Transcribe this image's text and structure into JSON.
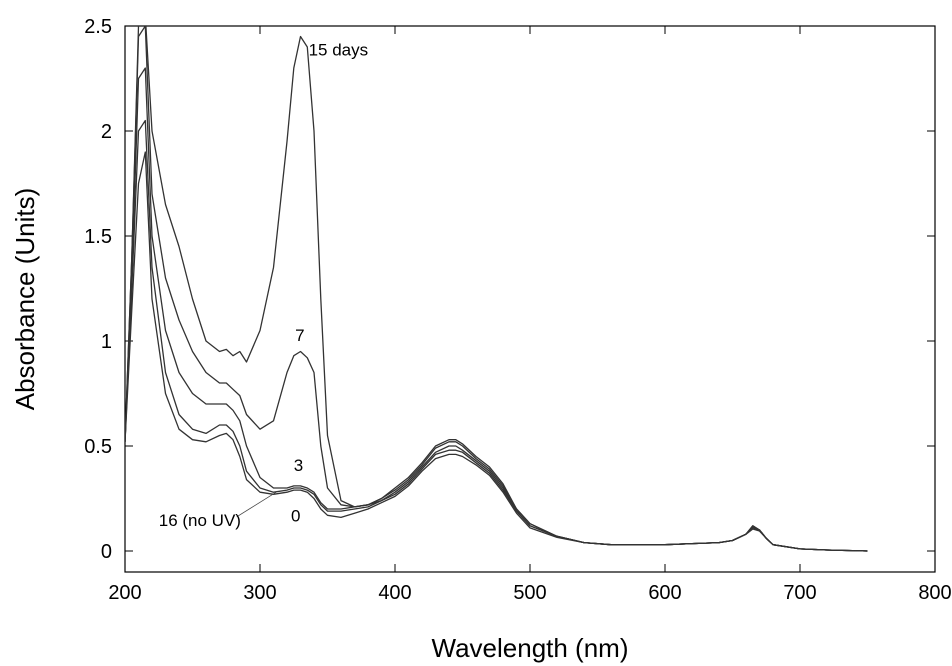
{
  "chart_data": {
    "type": "line",
    "title": "",
    "xlabel": "Wavelength (nm)",
    "ylabel": "Absorbance (Units)",
    "xlim": [
      200,
      800
    ],
    "ylim": [
      -0.1,
      2.5
    ],
    "x_ticks": [
      200,
      300,
      400,
      500,
      600,
      700,
      800
    ],
    "y_ticks": [
      0,
      0.5,
      1,
      1.5,
      2,
      2.5
    ],
    "x_tick_labels": [
      "200",
      "300",
      "400",
      "500",
      "600",
      "700",
      "800"
    ],
    "y_tick_labels": [
      "0",
      "0.5",
      "1",
      "1.5",
      "2",
      "2.5"
    ],
    "grid": false,
    "series": [
      {
        "name": "15 days",
        "x": [
          200,
          205,
          210,
          215,
          220,
          230,
          240,
          250,
          260,
          270,
          275,
          280,
          285,
          290,
          300,
          310,
          320,
          325,
          330,
          335,
          340,
          345,
          350,
          360,
          370,
          380,
          390,
          400,
          410,
          420,
          430,
          440,
          445,
          450,
          460,
          470,
          480,
          490,
          500,
          520,
          540,
          560,
          580,
          600,
          620,
          640,
          650,
          660,
          665,
          670,
          675,
          680,
          700,
          720,
          750
        ],
        "y": [
          0.52,
          1.4,
          2.5,
          2.55,
          2.0,
          1.65,
          1.45,
          1.2,
          1.0,
          0.95,
          0.96,
          0.93,
          0.95,
          0.9,
          1.05,
          1.35,
          1.95,
          2.3,
          2.45,
          2.4,
          2.0,
          1.2,
          0.55,
          0.24,
          0.21,
          0.22,
          0.25,
          0.3,
          0.35,
          0.42,
          0.5,
          0.53,
          0.53,
          0.51,
          0.45,
          0.4,
          0.32,
          0.2,
          0.13,
          0.07,
          0.04,
          0.03,
          0.03,
          0.03,
          0.035,
          0.04,
          0.05,
          0.08,
          0.12,
          0.1,
          0.06,
          0.03,
          0.01,
          0.005,
          0.0
        ]
      },
      {
        "name": "7",
        "x": [
          200,
          205,
          210,
          215,
          220,
          230,
          240,
          250,
          260,
          270,
          275,
          280,
          285,
          290,
          300,
          310,
          320,
          325,
          330,
          335,
          340,
          345,
          350,
          360,
          370,
          380,
          390,
          400,
          410,
          420,
          430,
          440,
          445,
          450,
          460,
          470,
          480,
          490,
          500,
          520,
          540,
          560,
          580,
          600,
          620,
          640,
          650,
          660,
          665,
          670,
          675,
          680,
          700,
          720,
          750
        ],
        "y": [
          0.52,
          1.4,
          2.45,
          2.5,
          1.7,
          1.3,
          1.1,
          0.95,
          0.85,
          0.8,
          0.8,
          0.77,
          0.74,
          0.65,
          0.58,
          0.62,
          0.85,
          0.93,
          0.95,
          0.92,
          0.85,
          0.5,
          0.3,
          0.22,
          0.21,
          0.22,
          0.25,
          0.29,
          0.34,
          0.41,
          0.49,
          0.52,
          0.52,
          0.5,
          0.44,
          0.39,
          0.31,
          0.2,
          0.13,
          0.07,
          0.04,
          0.03,
          0.03,
          0.03,
          0.035,
          0.04,
          0.05,
          0.08,
          0.12,
          0.1,
          0.06,
          0.03,
          0.01,
          0.005,
          0.0
        ]
      },
      {
        "name": "3",
        "x": [
          200,
          205,
          210,
          215,
          220,
          230,
          240,
          250,
          260,
          270,
          275,
          280,
          285,
          290,
          300,
          310,
          320,
          325,
          330,
          335,
          340,
          345,
          350,
          360,
          370,
          380,
          390,
          400,
          410,
          420,
          430,
          440,
          445,
          450,
          460,
          470,
          480,
          490,
          500,
          520,
          540,
          560,
          580,
          600,
          620,
          640,
          650,
          660,
          665,
          670,
          675,
          680,
          700,
          720,
          750
        ],
        "y": [
          0.52,
          1.3,
          2.25,
          2.3,
          1.5,
          1.05,
          0.85,
          0.75,
          0.7,
          0.7,
          0.7,
          0.67,
          0.62,
          0.5,
          0.35,
          0.3,
          0.3,
          0.31,
          0.31,
          0.3,
          0.28,
          0.23,
          0.2,
          0.2,
          0.21,
          0.22,
          0.24,
          0.28,
          0.33,
          0.4,
          0.47,
          0.5,
          0.5,
          0.48,
          0.43,
          0.38,
          0.3,
          0.19,
          0.12,
          0.07,
          0.04,
          0.03,
          0.03,
          0.03,
          0.035,
          0.04,
          0.05,
          0.08,
          0.115,
          0.1,
          0.06,
          0.03,
          0.01,
          0.005,
          0.0
        ]
      },
      {
        "name": "0",
        "x": [
          200,
          205,
          210,
          215,
          220,
          230,
          240,
          250,
          260,
          270,
          275,
          280,
          285,
          290,
          300,
          310,
          320,
          325,
          330,
          335,
          340,
          345,
          350,
          360,
          370,
          380,
          390,
          400,
          410,
          420,
          430,
          440,
          445,
          450,
          460,
          470,
          480,
          490,
          500,
          520,
          540,
          560,
          580,
          600,
          620,
          640,
          650,
          660,
          665,
          670,
          675,
          680,
          700,
          720,
          750
        ],
        "y": [
          0.52,
          1.25,
          2.0,
          2.05,
          1.35,
          0.85,
          0.65,
          0.58,
          0.56,
          0.6,
          0.6,
          0.57,
          0.5,
          0.38,
          0.3,
          0.28,
          0.29,
          0.3,
          0.3,
          0.29,
          0.27,
          0.22,
          0.19,
          0.19,
          0.2,
          0.21,
          0.24,
          0.27,
          0.32,
          0.39,
          0.46,
          0.48,
          0.48,
          0.47,
          0.42,
          0.37,
          0.29,
          0.19,
          0.12,
          0.07,
          0.04,
          0.03,
          0.03,
          0.03,
          0.035,
          0.04,
          0.05,
          0.08,
          0.11,
          0.1,
          0.06,
          0.03,
          0.01,
          0.005,
          0.0
        ]
      },
      {
        "name": "16 (no UV)",
        "x": [
          200,
          205,
          210,
          215,
          220,
          230,
          240,
          250,
          260,
          270,
          275,
          280,
          285,
          290,
          300,
          310,
          320,
          325,
          330,
          335,
          340,
          345,
          350,
          360,
          370,
          380,
          390,
          400,
          410,
          420,
          430,
          440,
          445,
          450,
          460,
          470,
          480,
          490,
          500,
          520,
          540,
          560,
          580,
          600,
          620,
          640,
          650,
          660,
          665,
          670,
          675,
          680,
          700,
          720,
          750
        ],
        "y": [
          0.52,
          1.15,
          1.75,
          1.9,
          1.2,
          0.75,
          0.58,
          0.53,
          0.52,
          0.55,
          0.56,
          0.53,
          0.45,
          0.34,
          0.28,
          0.27,
          0.28,
          0.29,
          0.29,
          0.28,
          0.25,
          0.2,
          0.17,
          0.16,
          0.18,
          0.2,
          0.23,
          0.26,
          0.31,
          0.38,
          0.44,
          0.46,
          0.46,
          0.45,
          0.41,
          0.36,
          0.28,
          0.18,
          0.11,
          0.065,
          0.04,
          0.03,
          0.03,
          0.03,
          0.035,
          0.04,
          0.05,
          0.08,
          0.105,
          0.095,
          0.06,
          0.03,
          0.01,
          0.005,
          0.0
        ]
      }
    ],
    "annotations": [
      {
        "text": "15 days",
        "x": 336,
        "y": 2.36,
        "series": "15 days"
      },
      {
        "text": "7",
        "x": 326,
        "y": 1.0,
        "series": "7"
      },
      {
        "text": "3",
        "x": 325,
        "y": 0.38,
        "series": "3"
      },
      {
        "text": "0",
        "x": 323,
        "y": 0.14,
        "series": "0"
      },
      {
        "text": "16 (no UV)",
        "x": 225,
        "y": 0.12,
        "series": "16 (no UV)",
        "leader_to": [
          312,
          0.28
        ]
      }
    ]
  }
}
